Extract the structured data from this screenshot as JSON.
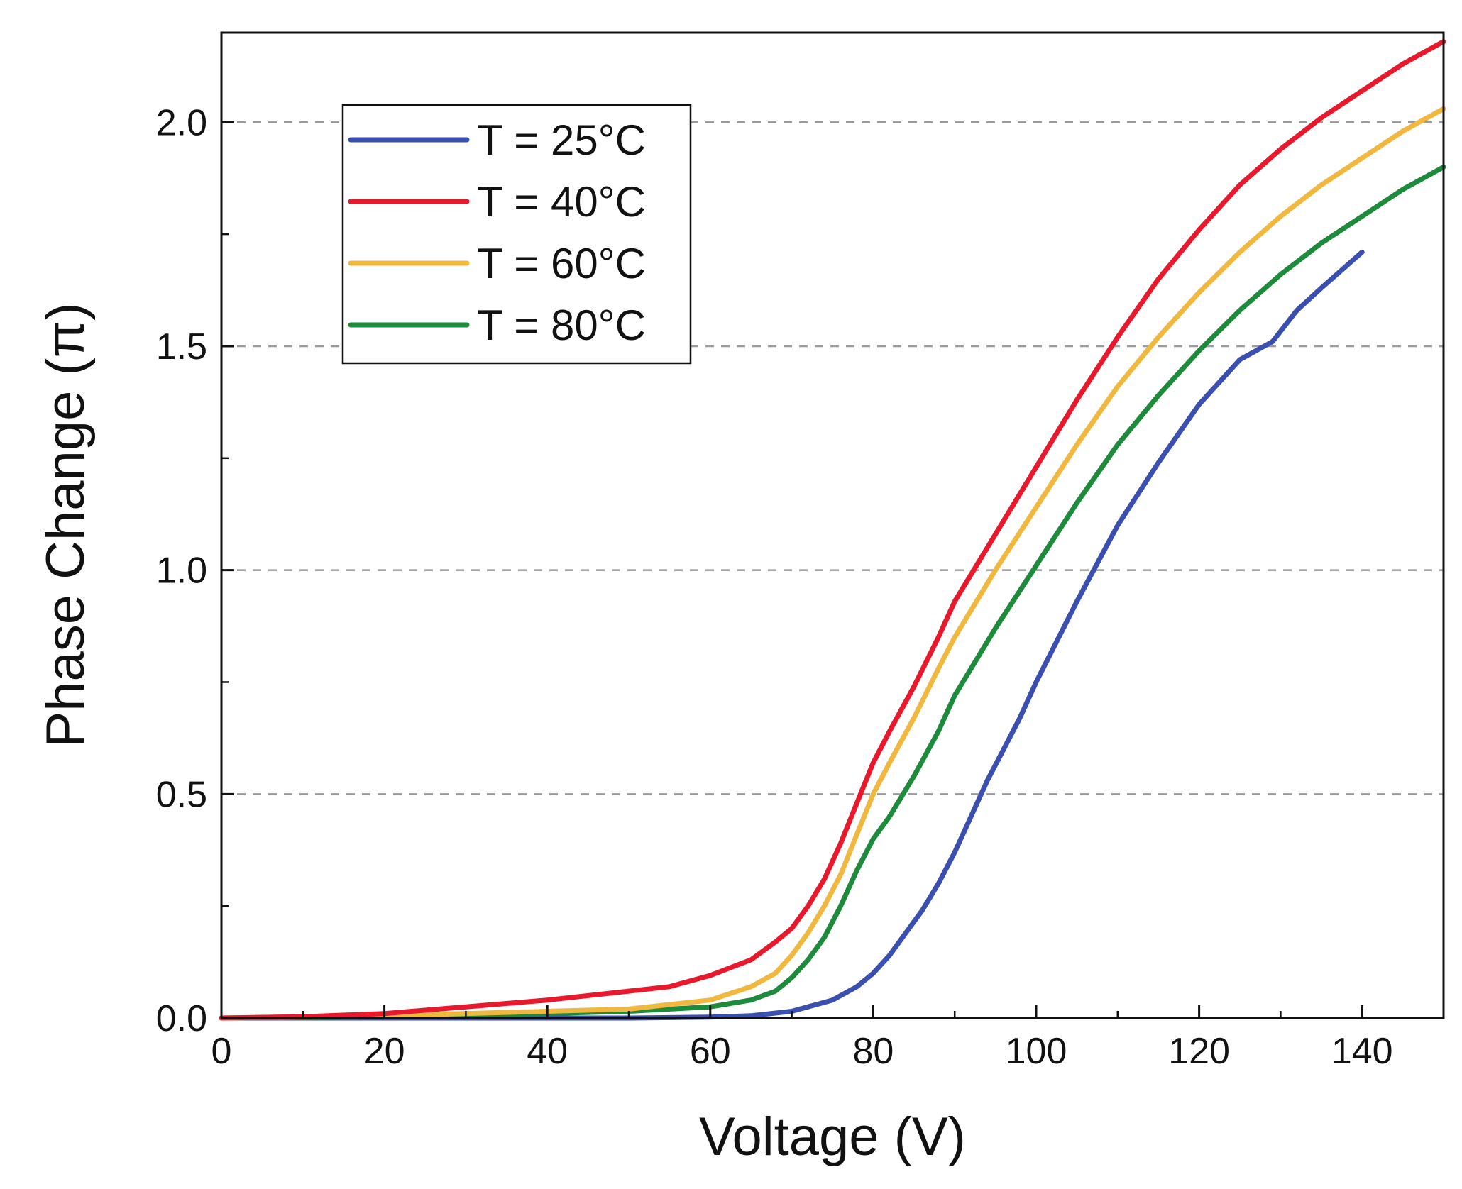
{
  "chart_data": {
    "type": "line",
    "title": "",
    "xlabel": "Voltage (V)",
    "ylabel": "Phase Change (π)",
    "xlim": [
      0,
      150
    ],
    "ylim": [
      0,
      2.2
    ],
    "xticks": [
      0,
      20,
      40,
      60,
      80,
      100,
      120,
      140
    ],
    "xtick_labels": [
      "0",
      "20",
      "40",
      "60",
      "80",
      "100",
      "120",
      "140"
    ],
    "yticks": [
      0.0,
      0.5,
      1.0,
      1.5,
      2.0
    ],
    "ytick_labels": [
      "0.0",
      "0.5",
      "1.0",
      "1.5",
      "2.0"
    ],
    "grid": "horizontal dashed at y ticks",
    "legend_position": "top-left",
    "series": [
      {
        "name": "T = 25°C",
        "color": "#3a4fb0",
        "points": [
          [
            0,
            0.0
          ],
          [
            30,
            0.0
          ],
          [
            50,
            0.0
          ],
          [
            60,
            0.002
          ],
          [
            65,
            0.005
          ],
          [
            70,
            0.015
          ],
          [
            75,
            0.04
          ],
          [
            78,
            0.07
          ],
          [
            80,
            0.1
          ],
          [
            82,
            0.14
          ],
          [
            84,
            0.19
          ],
          [
            86,
            0.24
          ],
          [
            88,
            0.3
          ],
          [
            90,
            0.37
          ],
          [
            92,
            0.45
          ],
          [
            94,
            0.53
          ],
          [
            96,
            0.6
          ],
          [
            98,
            0.67
          ],
          [
            100,
            0.75
          ],
          [
            105,
            0.93
          ],
          [
            110,
            1.1
          ],
          [
            115,
            1.24
          ],
          [
            120,
            1.37
          ],
          [
            125,
            1.47
          ],
          [
            129,
            1.51
          ],
          [
            132,
            1.58
          ],
          [
            135,
            1.63
          ],
          [
            140,
            1.71
          ]
        ]
      },
      {
        "name": "T = 40°C",
        "color": "#e8192c",
        "points": [
          [
            0,
            0.0
          ],
          [
            10,
            0.003
          ],
          [
            20,
            0.01
          ],
          [
            30,
            0.025
          ],
          [
            40,
            0.04
          ],
          [
            50,
            0.06
          ],
          [
            55,
            0.07
          ],
          [
            60,
            0.095
          ],
          [
            65,
            0.13
          ],
          [
            68,
            0.17
          ],
          [
            70,
            0.2
          ],
          [
            72,
            0.25
          ],
          [
            74,
            0.31
          ],
          [
            76,
            0.39
          ],
          [
            78,
            0.48
          ],
          [
            80,
            0.57
          ],
          [
            82,
            0.64
          ],
          [
            85,
            0.74
          ],
          [
            88,
            0.85
          ],
          [
            90,
            0.93
          ],
          [
            95,
            1.08
          ],
          [
            100,
            1.23
          ],
          [
            105,
            1.38
          ],
          [
            110,
            1.52
          ],
          [
            115,
            1.65
          ],
          [
            120,
            1.76
          ],
          [
            125,
            1.86
          ],
          [
            130,
            1.94
          ],
          [
            135,
            2.01
          ],
          [
            140,
            2.07
          ],
          [
            145,
            2.13
          ],
          [
            150,
            2.18
          ]
        ]
      },
      {
        "name": "T = 60°C",
        "color": "#f1b840",
        "points": [
          [
            0,
            0.0
          ],
          [
            20,
            0.005
          ],
          [
            40,
            0.015
          ],
          [
            50,
            0.02
          ],
          [
            60,
            0.04
          ],
          [
            65,
            0.07
          ],
          [
            68,
            0.1
          ],
          [
            70,
            0.14
          ],
          [
            72,
            0.19
          ],
          [
            74,
            0.25
          ],
          [
            76,
            0.32
          ],
          [
            78,
            0.41
          ],
          [
            80,
            0.5
          ],
          [
            82,
            0.57
          ],
          [
            85,
            0.67
          ],
          [
            88,
            0.78
          ],
          [
            90,
            0.85
          ],
          [
            95,
            1.0
          ],
          [
            100,
            1.14
          ],
          [
            105,
            1.28
          ],
          [
            110,
            1.41
          ],
          [
            115,
            1.52
          ],
          [
            120,
            1.62
          ],
          [
            125,
            1.71
          ],
          [
            130,
            1.79
          ],
          [
            135,
            1.86
          ],
          [
            140,
            1.92
          ],
          [
            145,
            1.98
          ],
          [
            150,
            2.03
          ]
        ]
      },
      {
        "name": "T = 80°C",
        "color": "#1e8a3c",
        "points": [
          [
            0,
            0.0
          ],
          [
            20,
            0.004
          ],
          [
            40,
            0.01
          ],
          [
            50,
            0.015
          ],
          [
            60,
            0.025
          ],
          [
            65,
            0.04
          ],
          [
            68,
            0.06
          ],
          [
            70,
            0.09
          ],
          [
            72,
            0.13
          ],
          [
            74,
            0.18
          ],
          [
            76,
            0.25
          ],
          [
            78,
            0.33
          ],
          [
            80,
            0.4
          ],
          [
            82,
            0.45
          ],
          [
            85,
            0.54
          ],
          [
            88,
            0.64
          ],
          [
            90,
            0.72
          ],
          [
            95,
            0.87
          ],
          [
            100,
            1.01
          ],
          [
            105,
            1.15
          ],
          [
            110,
            1.28
          ],
          [
            115,
            1.39
          ],
          [
            120,
            1.49
          ],
          [
            125,
            1.58
          ],
          [
            130,
            1.66
          ],
          [
            135,
            1.73
          ],
          [
            140,
            1.79
          ],
          [
            145,
            1.85
          ],
          [
            150,
            1.9
          ]
        ]
      }
    ]
  }
}
